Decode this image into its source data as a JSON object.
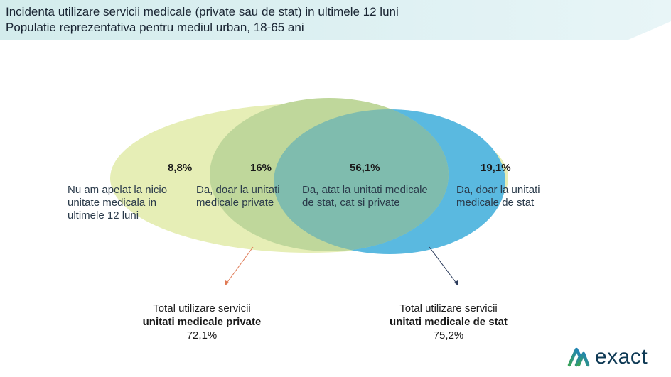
{
  "header": {
    "title": "Incidenta utilizare servicii medicale (private sau de stat) in ultimele 12 luni",
    "subtitle": "Populatie reprezentativa pentru mediul urban, 18-65 ani"
  },
  "venn": {
    "segments": [
      {
        "value": "8,8%",
        "label_lines": [
          "Nu am apelat la nicio",
          "unitate medicala in",
          "ultimele 12 luni"
        ]
      },
      {
        "value": "16%",
        "label_lines": [
          "Da, doar la unitati",
          "medicale private"
        ]
      },
      {
        "value": "56,1%",
        "label_lines": [
          "Da, atat la unitati medicale",
          "de stat, cat si private"
        ]
      },
      {
        "value": "19,1%",
        "label_lines": [
          "Da, doar la unitati",
          "medicale de stat"
        ]
      }
    ],
    "colors": {
      "outer": "#e6eeb6",
      "private": "#bfd79b",
      "state": "#5ab9e0",
      "overlap": "#7fbcae",
      "arrow_private": "#e07a55",
      "arrow_state": "#2a3a5a"
    }
  },
  "totals": {
    "private": {
      "line1": "Total utilizare servicii",
      "line2": "unitati medicale private",
      "value": "72,1%"
    },
    "state": {
      "line1": "Total utilizare servicii",
      "line2": "unitati medicale de stat",
      "value": "75,2%"
    }
  },
  "logo": {
    "text": "exact",
    "icon": "exact-logo-icon"
  }
}
